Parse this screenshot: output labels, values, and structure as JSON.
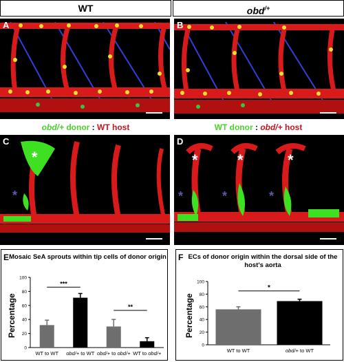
{
  "headers": {
    "left": "WT",
    "right_base": "obd",
    "right_sup": "/+"
  },
  "panels": {
    "A": "A",
    "B": "B",
    "C": "C",
    "D": "D",
    "E": "E",
    "F": "F"
  },
  "legend_left": {
    "italic": "obd/+",
    "donor": " donor",
    "sep": " : ",
    "host": "WT host"
  },
  "legend_right": {
    "donor": "WT donor",
    "sep": " : ",
    "italic": "obd/+",
    "host": " host"
  },
  "colors": {
    "green": "#4bd12a",
    "red": "#c8141e",
    "bar_gray": "#6e6e6e",
    "bar_black": "#000000"
  },
  "chart_data": [
    {
      "type": "bar",
      "title": "Mosaic SeA sprouts within tip cells of donor origin",
      "ylabel": "Percentage",
      "xlabel": "",
      "categories": [
        "WT to WT",
        "obd/+ to WT",
        "obd/+ to obd/+",
        "WT to obd/+"
      ],
      "values": [
        32,
        71,
        30,
        9
      ],
      "errors": [
        7,
        6,
        10,
        5
      ],
      "bar_colors": [
        "#6e6e6e",
        "#000000",
        "#6e6e6e",
        "#000000"
      ],
      "ylim": [
        0,
        100
      ],
      "ticks": [
        "0",
        "20",
        "40",
        "60",
        "80",
        "100"
      ],
      "significance": [
        "***",
        "**"
      ]
    },
    {
      "type": "bar",
      "title": "ECs of donor origin within the dorsal side of the host's aorta",
      "ylabel": "Percentage",
      "xlabel": "",
      "categories": [
        "WT to WT",
        "obd/+ to WT"
      ],
      "values": [
        56,
        69
      ],
      "errors": [
        4,
        3
      ],
      "bar_colors": [
        "#6e6e6e",
        "#000000"
      ],
      "ylim": [
        0,
        100
      ],
      "ticks": [
        "0",
        "20",
        "40",
        "60",
        "80",
        "100"
      ],
      "significance": [
        "*"
      ]
    }
  ]
}
